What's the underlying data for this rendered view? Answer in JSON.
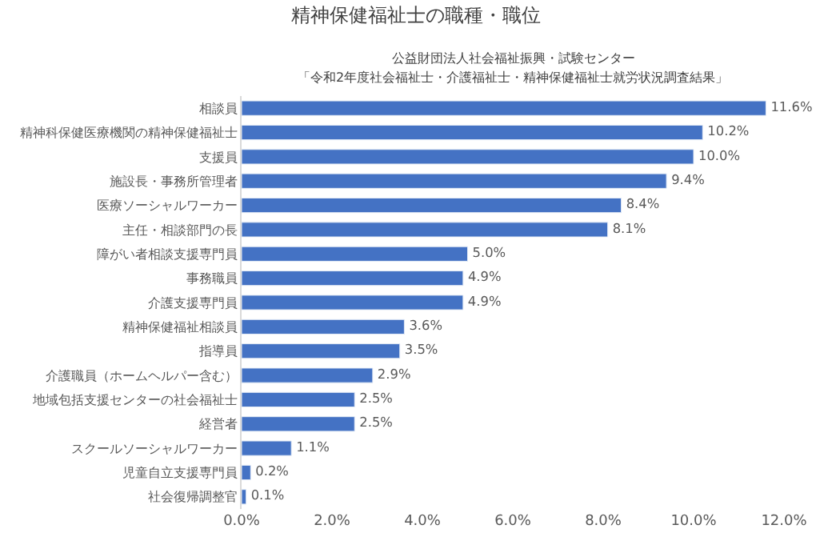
{
  "chart_data": {
    "type": "bar",
    "orientation": "horizontal",
    "title": "精神保健福祉士の職種・職位",
    "subtitle": "公益財団法人社会福祉振興・試験センター",
    "annotations": [
      "「令和2年度社会福祉士・介護福祉士・精神保健福祉士就労状況調査結果」"
    ],
    "categories": [
      "相談員",
      "精神科保健医療機関の精神保健福祉士",
      "支援員",
      "施設長・事務所管理者",
      "医療ソーシャルワーカー",
      "主任・相談部門の長",
      "障がい者相談支援専門員",
      "事務職員",
      "介護支援専門員",
      "精神保健福祉相談員",
      "指導員",
      "介護職員（ホームヘルパー含む）",
      "地域包括支援センターの社会福祉士",
      "経営者",
      "スクールソーシャルワーカー",
      "児童自立支援専門員",
      "社会復帰調整官"
    ],
    "values": [
      11.6,
      10.2,
      10.0,
      9.4,
      8.4,
      8.1,
      5.0,
      4.9,
      4.9,
      3.6,
      3.5,
      2.9,
      2.5,
      2.5,
      1.1,
      0.2,
      0.1
    ],
    "value_labels": [
      "11.6%",
      "10.2%",
      "10.0%",
      "9.4%",
      "8.4%",
      "8.1%",
      "5.0%",
      "4.9%",
      "4.9%",
      "3.6%",
      "3.5%",
      "2.9%",
      "2.5%",
      "2.5%",
      "1.1%",
      "0.2%",
      "0.1%"
    ],
    "color": "#4472c4",
    "xlim": [
      0,
      12
    ],
    "xticks": [
      {
        "value": 0,
        "label": "0.0%"
      },
      {
        "value": 2,
        "label": "2.0%"
      },
      {
        "value": 4,
        "label": "4.0%"
      },
      {
        "value": 6,
        "label": "6.0%"
      },
      {
        "value": 8,
        "label": "8.0%"
      },
      {
        "value": 10,
        "label": "10.0%"
      },
      {
        "value": 12,
        "label": "12.0%"
      }
    ],
    "grid": false,
    "legend": false
  }
}
